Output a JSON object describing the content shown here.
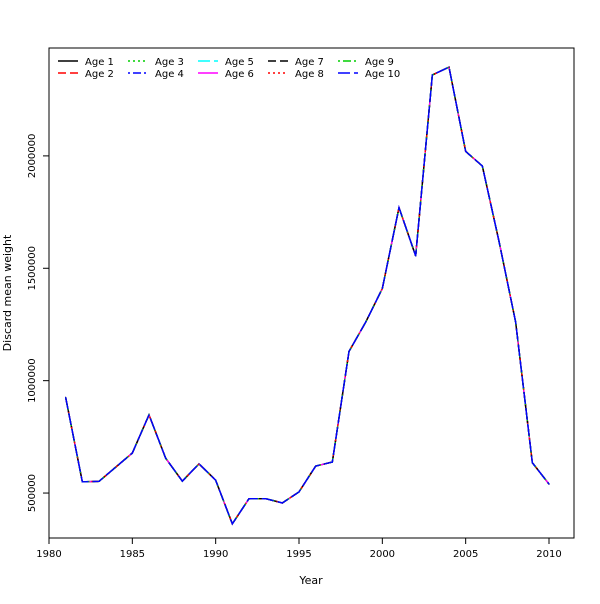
{
  "chart_data": {
    "type": "line",
    "title": "",
    "xlabel": "Year",
    "ylabel": "Discard mean weight",
    "xlim": [
      1980,
      2011.5
    ],
    "ylim": [
      300000,
      2480000
    ],
    "x_ticks": [
      1980,
      1985,
      1990,
      1995,
      2000,
      2005,
      2010
    ],
    "y_ticks": [
      500000,
      1000000,
      1500000,
      2000000
    ],
    "grid": false,
    "legend_position": "top-left",
    "x": [
      1981,
      1982,
      1983,
      1984,
      1985,
      1986,
      1987,
      1988,
      1989,
      1990,
      1991,
      1992,
      1993,
      1994,
      1995,
      1996,
      1997,
      1998,
      1999,
      2000,
      2001,
      2002,
      2003,
      2004,
      2005,
      2006,
      2007,
      2008,
      2009,
      2010
    ],
    "series": [
      {
        "name": "Age 1",
        "color": "#000000",
        "dash": "",
        "values": [
          925000,
          550000,
          552000,
          615000,
          678000,
          848000,
          655000,
          553000,
          630000,
          557000,
          363000,
          475000,
          475000,
          456000,
          505000,
          620000,
          638000,
          1130000,
          1260000,
          1410000,
          1770000,
          1555000,
          2360000,
          2395000,
          2020000,
          1955000,
          1620000,
          1260000,
          635000,
          540000
        ]
      },
      {
        "name": "Age 2",
        "color": "#ff0000",
        "dash": "8,4",
        "values": [
          925000,
          550000,
          552000,
          615000,
          678000,
          848000,
          655000,
          553000,
          630000,
          557000,
          363000,
          475000,
          475000,
          456000,
          505000,
          620000,
          638000,
          1130000,
          1260000,
          1410000,
          1770000,
          1555000,
          2360000,
          2395000,
          2020000,
          1955000,
          1620000,
          1260000,
          635000,
          540000
        ]
      },
      {
        "name": "Age 3",
        "color": "#00cd00",
        "dash": "2,3",
        "values": [
          925000,
          550000,
          552000,
          615000,
          678000,
          848000,
          655000,
          553000,
          630000,
          557000,
          363000,
          475000,
          475000,
          456000,
          505000,
          620000,
          638000,
          1130000,
          1260000,
          1410000,
          1770000,
          1555000,
          2360000,
          2395000,
          2020000,
          1955000,
          1620000,
          1260000,
          635000,
          540000
        ]
      },
      {
        "name": "Age 4",
        "color": "#0000ff",
        "dash": "2,3,8,3",
        "values": [
          925000,
          550000,
          552000,
          615000,
          678000,
          848000,
          655000,
          553000,
          630000,
          557000,
          363000,
          475000,
          475000,
          456000,
          505000,
          620000,
          638000,
          1130000,
          1260000,
          1410000,
          1770000,
          1555000,
          2360000,
          2395000,
          2020000,
          1955000,
          1620000,
          1260000,
          635000,
          540000
        ]
      },
      {
        "name": "Age 5",
        "color": "#00ffff",
        "dash": "12,4",
        "values": [
          925000,
          550000,
          552000,
          615000,
          678000,
          848000,
          655000,
          553000,
          630000,
          557000,
          363000,
          475000,
          475000,
          456000,
          505000,
          620000,
          638000,
          1130000,
          1260000,
          1410000,
          1770000,
          1555000,
          2360000,
          2395000,
          2020000,
          1955000,
          1620000,
          1260000,
          635000,
          540000
        ]
      },
      {
        "name": "Age 6",
        "color": "#ff00ff",
        "dash": "",
        "values": [
          925000,
          550000,
          552000,
          615000,
          678000,
          848000,
          655000,
          553000,
          630000,
          557000,
          363000,
          475000,
          475000,
          456000,
          505000,
          620000,
          638000,
          1130000,
          1260000,
          1410000,
          1770000,
          1555000,
          2360000,
          2395000,
          2020000,
          1955000,
          1620000,
          1260000,
          635000,
          540000
        ]
      },
      {
        "name": "Age 7",
        "color": "#000000",
        "dash": "8,4",
        "values": [
          925000,
          550000,
          552000,
          615000,
          678000,
          848000,
          655000,
          553000,
          630000,
          557000,
          363000,
          475000,
          475000,
          456000,
          505000,
          620000,
          638000,
          1130000,
          1260000,
          1410000,
          1770000,
          1555000,
          2360000,
          2395000,
          2020000,
          1955000,
          1620000,
          1260000,
          635000,
          540000
        ]
      },
      {
        "name": "Age 8",
        "color": "#ff0000",
        "dash": "2,3",
        "values": [
          925000,
          550000,
          552000,
          615000,
          678000,
          848000,
          655000,
          553000,
          630000,
          557000,
          363000,
          475000,
          475000,
          456000,
          505000,
          620000,
          638000,
          1130000,
          1260000,
          1410000,
          1770000,
          1555000,
          2360000,
          2395000,
          2020000,
          1955000,
          1620000,
          1260000,
          635000,
          540000
        ]
      },
      {
        "name": "Age 9",
        "color": "#00cd00",
        "dash": "2,3,8,3",
        "values": [
          925000,
          550000,
          552000,
          615000,
          678000,
          848000,
          655000,
          553000,
          630000,
          557000,
          363000,
          475000,
          475000,
          456000,
          505000,
          620000,
          638000,
          1130000,
          1260000,
          1410000,
          1770000,
          1555000,
          2360000,
          2395000,
          2020000,
          1955000,
          1620000,
          1260000,
          635000,
          540000
        ]
      },
      {
        "name": "Age 10",
        "color": "#0000ff",
        "dash": "12,4",
        "values": [
          925000,
          550000,
          552000,
          615000,
          678000,
          848000,
          655000,
          553000,
          630000,
          557000,
          363000,
          475000,
          475000,
          456000,
          505000,
          620000,
          638000,
          1130000,
          1260000,
          1410000,
          1770000,
          1555000,
          2360000,
          2395000,
          2020000,
          1955000,
          1620000,
          1260000,
          635000,
          540000
        ]
      }
    ]
  }
}
